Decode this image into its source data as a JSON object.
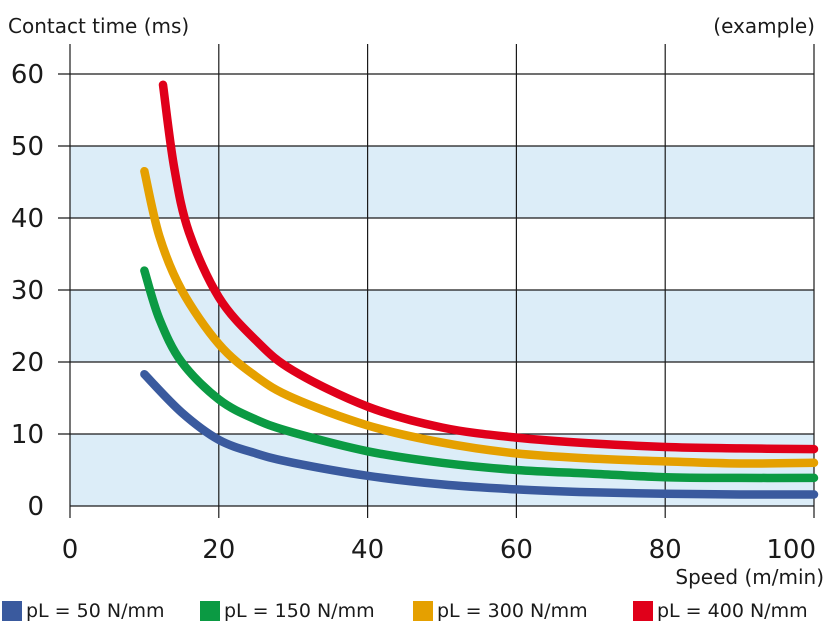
{
  "chart_data": {
    "type": "line",
    "title": "",
    "ylabel": "Contact time (ms)",
    "xlabel": "Speed (m/min)",
    "note": "(example)",
    "xlim": [
      0,
      100
    ],
    "ylim": [
      0,
      60
    ],
    "x_ticks": [
      "0",
      "20",
      "40",
      "60",
      "80",
      "100"
    ],
    "y_ticks": [
      "0",
      "10",
      "20",
      "30",
      "40",
      "50",
      "60"
    ],
    "grid": true,
    "shaded_bands": [
      [
        0,
        10
      ],
      [
        20,
        30
      ],
      [
        40,
        50
      ]
    ],
    "band_color": "#dcedf8",
    "legend_position": "bottom",
    "series": [
      {
        "name": "pL = 50 N/mm",
        "color": "#3a5a9e",
        "x": [
          10,
          15,
          20,
          25,
          30,
          40,
          50,
          60,
          70,
          80,
          90,
          100
        ],
        "y": [
          18.3,
          13.0,
          9.2,
          7.3,
          6.0,
          4.2,
          3.0,
          2.3,
          1.9,
          1.7,
          1.6,
          1.6
        ]
      },
      {
        "name": "pL = 150 N/mm",
        "color": "#0b9a43",
        "x": [
          10,
          12,
          15,
          20,
          25,
          30,
          40,
          50,
          60,
          70,
          80,
          90,
          100
        ],
        "y": [
          32.7,
          26.0,
          20.0,
          14.8,
          12.0,
          10.2,
          7.6,
          6.0,
          5.0,
          4.5,
          4.0,
          3.9,
          3.9
        ]
      },
      {
        "name": "pL = 300 N/mm",
        "color": "#e5a000",
        "x": [
          10,
          12,
          15,
          20,
          25,
          30,
          40,
          50,
          60,
          70,
          80,
          90,
          100
        ],
        "y": [
          46.5,
          37.5,
          30.0,
          22.5,
          18.0,
          15.0,
          11.2,
          8.8,
          7.3,
          6.6,
          6.2,
          5.9,
          6.0
        ]
      },
      {
        "name": "pL = 400 N/mm",
        "color": "#e0001a",
        "x": [
          12.5,
          14,
          16,
          20,
          25,
          30,
          40,
          50,
          60,
          70,
          80,
          90,
          100
        ],
        "y": [
          58.5,
          47.0,
          38.0,
          29.0,
          23.0,
          18.8,
          13.8,
          10.9,
          9.5,
          8.7,
          8.2,
          8.0,
          7.9
        ]
      }
    ]
  }
}
